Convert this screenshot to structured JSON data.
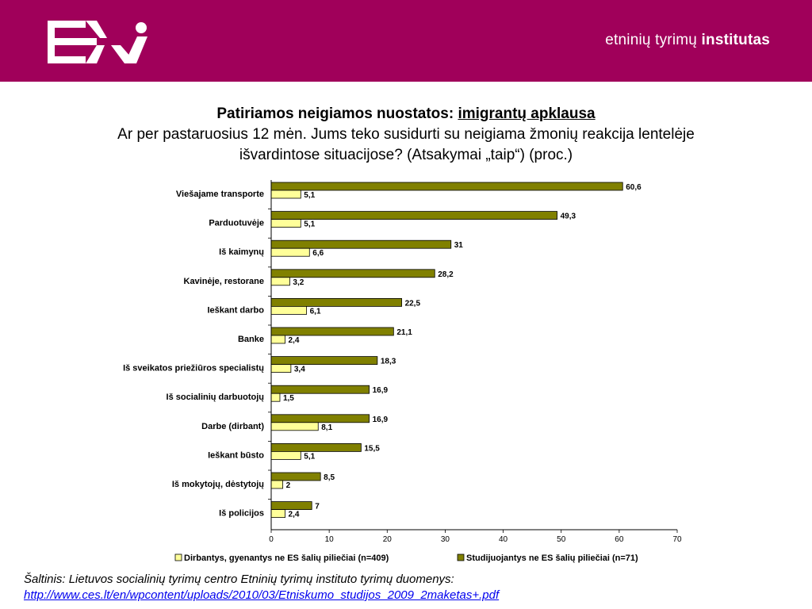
{
  "header": {
    "brand_regular": "etninių tyrimų",
    "brand_bold": "institutas",
    "background_color": "#a0005a",
    "logo": "ev-logo"
  },
  "title": {
    "bold_prefix": "Patiriamos neigiamos nuostatos:",
    "bold_link": "imigrantų apklausa",
    "line2": "Ar per pastaruosius 12 mėn. Jums teko susidurti su neigiama žmonių reakcija lentelėje",
    "line3": "išvardintose situacijose? (Atsakymai „taip“) (proc.)"
  },
  "chart_data": {
    "type": "bar",
    "orientation": "horizontal",
    "categories": [
      "Viešajame transporte",
      "Parduotuvėje",
      "Iš kaimynų",
      "Kavinėje, restorane",
      "Ieškant darbo",
      "Banke",
      "Iš sveikatos priežiūros specialistų",
      "Iš socialinių darbuotojų",
      "Darbe (dirbant)",
      "Ieškant būsto",
      "Iš mokytojų, dėstytojų",
      "Iš policijos"
    ],
    "series": [
      {
        "name": "Studijuojantys ne ES šalių piliečiai (n=71)",
        "color": "#808000",
        "values": [
          60.6,
          49.3,
          31,
          28.2,
          22.5,
          21.1,
          18.3,
          16.9,
          16.9,
          15.5,
          8.5,
          7
        ],
        "labels": [
          "60,6",
          "49,3",
          "31",
          "28,2",
          "22,5",
          "21,1",
          "18,3",
          "16,9",
          "16,9",
          "15,5",
          "8,5",
          "7"
        ]
      },
      {
        "name": "Dirbantys, gyenantys ne ES šalių piliečiai (n=409)",
        "color": "#ffff99",
        "values": [
          5.1,
          5.1,
          6.6,
          3.2,
          6.1,
          2.4,
          3.4,
          1.5,
          8.1,
          5.1,
          2,
          2.4
        ],
        "labels": [
          "5,1",
          "5,1",
          "6,6",
          "3,2",
          "6,1",
          "2,4",
          "3,4",
          "1,5",
          "8,1",
          "5,1",
          "2",
          "2,4"
        ]
      }
    ],
    "xlim": [
      0,
      70
    ],
    "xticks": [
      "0",
      "10",
      "20",
      "30",
      "40",
      "50",
      "60",
      "70"
    ],
    "legend_position": "bottom",
    "legend_order": [
      1,
      0
    ],
    "grid": false
  },
  "source": {
    "text": "Šaltinis: Lietuvos socialinių tyrimų centro Etninių tyrimų instituto tyrimų duomenys:",
    "url": "http://www.ces.lt/en/wpcontent/uploads/2010/03/Etniskumo_studijos_2009_2maketas+.pdf"
  }
}
